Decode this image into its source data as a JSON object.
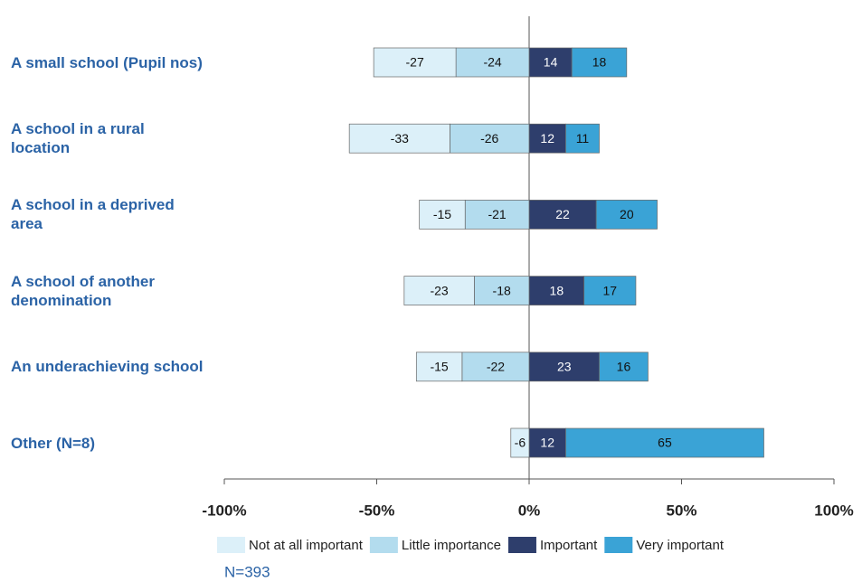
{
  "chart_data": {
    "type": "bar",
    "orientation": "horizontal",
    "stacked": true,
    "categories": [
      "A small school (Pupil nos)",
      "A school in a rural location",
      "A school in a deprived area",
      "A school of another denomination",
      "An underachieving school",
      "Other (N=8)"
    ],
    "series": [
      {
        "name": "Not at all important",
        "color": "#dcf0f9",
        "values": [
          -27,
          -33,
          -15,
          -23,
          -15,
          -6
        ]
      },
      {
        "name": "Little importance",
        "color": "#b3dcee",
        "values": [
          -24,
          -26,
          -21,
          -18,
          -22,
          null
        ]
      },
      {
        "name": "Important",
        "color": "#2e3e6c",
        "values": [
          14,
          12,
          22,
          18,
          23,
          12
        ]
      },
      {
        "name": "Very important",
        "color": "#3aa3d6",
        "values": [
          18,
          11,
          20,
          17,
          16,
          65
        ]
      }
    ],
    "xlim": [
      -100,
      100
    ],
    "xticks": [
      {
        "value": -100,
        "label": "-100%"
      },
      {
        "value": -50,
        "label": "-50%"
      },
      {
        "value": 0,
        "label": "0%"
      },
      {
        "value": 50,
        "label": "50%"
      },
      {
        "value": 100,
        "label": "100%"
      }
    ],
    "legend": "bottom",
    "note": "N=393"
  }
}
